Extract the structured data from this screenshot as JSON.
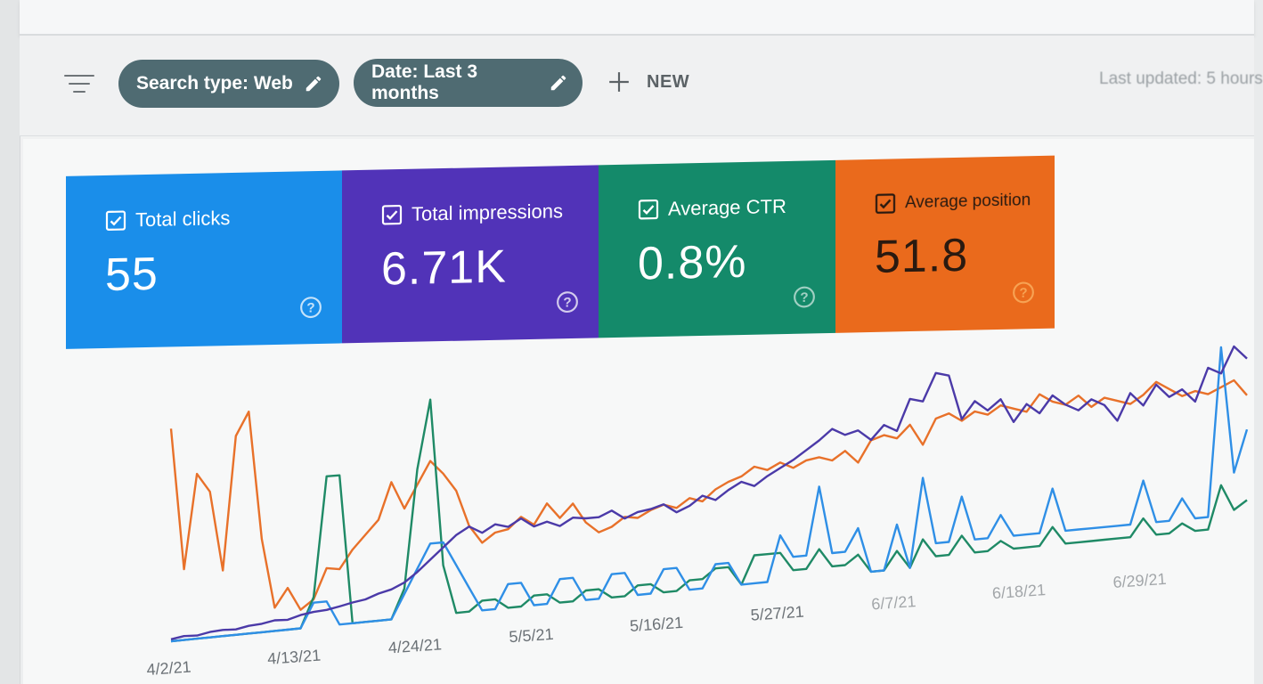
{
  "filters": {
    "search_type": "Search type: Web",
    "date": "Date: Last 3 months",
    "new_label": "NEW",
    "last_updated": "Last updated: 5 hours"
  },
  "metrics": [
    {
      "label": "Total clicks",
      "value": "55",
      "color": "#1a8eea",
      "checked": true
    },
    {
      "label": "Total impressions",
      "value": "6.71K",
      "color": "#5133b8",
      "checked": true
    },
    {
      "label": "Average CTR",
      "value": "0.8%",
      "color": "#148a6a",
      "checked": true
    },
    {
      "label": "Average position",
      "value": "51.8",
      "color": "#ea6a1c",
      "checked": true
    }
  ],
  "icons": {
    "filter": "filter-icon",
    "edit": "pencil-icon",
    "add": "plus-icon",
    "checkbox": "checkbox-icon",
    "help": "help-icon"
  },
  "chart_data": {
    "type": "line",
    "x_tick_labels": [
      "4/2/21",
      "4/13/21",
      "4/24/21",
      "5/5/21",
      "5/16/21",
      "5/27/21",
      "6/7/21",
      "6/18/21",
      "6/29/21"
    ],
    "series": [
      {
        "name": "Total clicks",
        "color": "#2f8fe6",
        "values": [
          0,
          0,
          0,
          0,
          0,
          0,
          0,
          0,
          0,
          0,
          0,
          1,
          1,
          0,
          0,
          0,
          0,
          0,
          1,
          2,
          3,
          3,
          2,
          1,
          0,
          0,
          1,
          1,
          0,
          0,
          1,
          1,
          0,
          0,
          1,
          1,
          0,
          0,
          1,
          1,
          0,
          0,
          1,
          1,
          0,
          0,
          0,
          2,
          1,
          1,
          4,
          1,
          1,
          2,
          0,
          0,
          2,
          0,
          4,
          1,
          1,
          3,
          1,
          1,
          2,
          1,
          1,
          1,
          3,
          1,
          1,
          1,
          1,
          1,
          1,
          3,
          1,
          1,
          2,
          1,
          1,
          9,
          3,
          5
        ]
      },
      {
        "name": "Total impressions",
        "color": "#4b3aa8",
        "values": [
          5,
          10,
          8,
          14,
          16,
          14,
          20,
          22,
          28,
          26,
          35,
          40,
          42,
          48,
          55,
          60,
          72,
          80,
          95,
          120,
          150,
          180,
          210,
          230,
          210,
          230,
          220,
          240,
          215,
          225,
          210,
          230,
          225,
          225,
          240,
          215,
          230,
          235,
          245,
          220,
          235,
          260,
          245,
          270,
          290,
          275,
          300,
          320,
          340,
          365,
          390,
          420,
          400,
          410,
          380,
          420,
          400,
          490,
          480,
          560,
          550,
          420,
          470,
          440,
          470,
          400,
          450,
          420,
          470,
          440,
          420,
          450,
          430,
          380,
          460,
          420,
          480,
          440,
          460,
          420,
          520,
          500,
          580,
          540
        ]
      },
      {
        "name": "Average CTR",
        "color": "#1f8a66",
        "values": [
          0,
          0,
          0,
          0,
          0,
          0,
          0,
          0,
          0,
          0,
          0,
          3,
          15,
          15,
          0,
          0,
          0,
          0,
          3,
          15,
          22,
          5,
          0,
          0,
          1,
          1,
          0,
          0,
          1,
          1,
          0,
          0,
          1,
          1,
          0,
          0,
          1,
          1,
          0,
          0,
          1,
          1,
          2,
          2,
          0,
          3,
          3,
          3,
          1,
          1,
          3,
          1,
          1,
          2,
          0,
          0,
          2,
          0,
          3,
          1,
          1,
          3,
          1,
          1,
          2,
          1,
          1,
          1,
          3,
          1,
          1,
          1,
          1,
          1,
          1,
          3,
          1,
          1,
          2,
          1,
          1,
          6,
          3,
          4
        ]
      },
      {
        "name": "Average position",
        "color": "#e8712a",
        "values": [
          90,
          30,
          70,
          62,
          28,
          85,
          95,
          40,
          10,
          18,
          8,
          12,
          25,
          24,
          32,
          38,
          44,
          60,
          48,
          58,
          68,
          62,
          54,
          38,
          30,
          34,
          35,
          40,
          36,
          45,
          38,
          44,
          35,
          30,
          32,
          36,
          35,
          38,
          40,
          38,
          42,
          40,
          45,
          48,
          50,
          54,
          52,
          55,
          52,
          55,
          56,
          54,
          58,
          52,
          62,
          64,
          62,
          68,
          58,
          70,
          72,
          68,
          72,
          70,
          74,
          72,
          70,
          78,
          74,
          72,
          76,
          70,
          74,
          72,
          70,
          74,
          80,
          76,
          72,
          74,
          72,
          75,
          78,
          70
        ]
      }
    ],
    "legend": "none",
    "grid": false
  }
}
